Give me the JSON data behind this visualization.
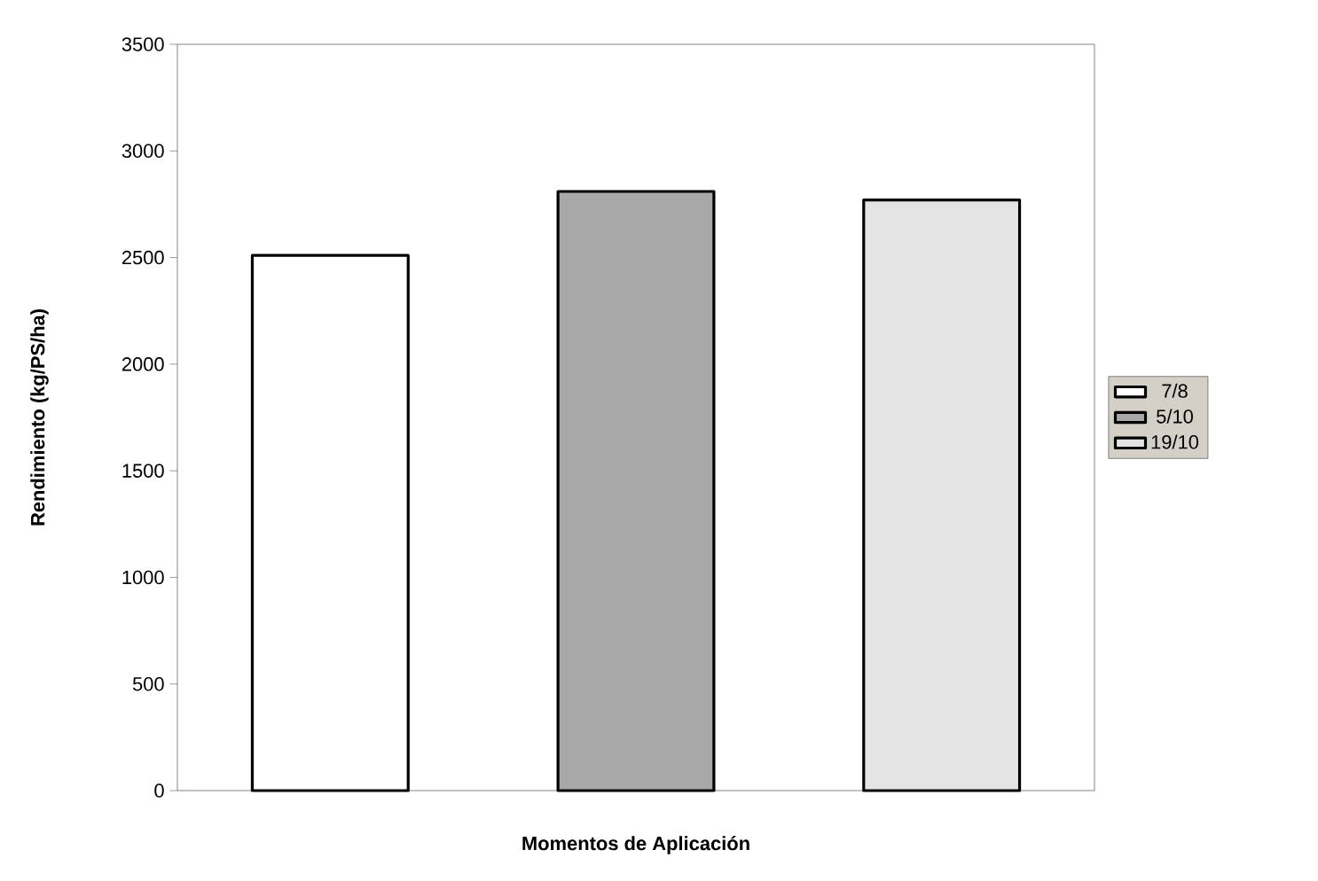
{
  "chart_data": {
    "type": "bar",
    "xlabel": "Momentos de Aplicación",
    "ylabel": "Rendimiento (kg/PS/ha)",
    "categories": [
      null,
      null,
      null
    ],
    "stacked": true,
    "series": [
      {
        "name": "7/8",
        "color": "#ffffff",
        "values": [
          2510,
          null,
          null
        ]
      },
      {
        "name": "5/10",
        "color": "#a8a8a8",
        "values": [
          null,
          2810,
          null
        ]
      },
      {
        "name": "19/10",
        "color": "#e4e4e4",
        "values": [
          null,
          null,
          2770
        ]
      }
    ],
    "ylim": [
      0,
      3500
    ],
    "yticks": [
      0,
      500,
      1000,
      1500,
      2000,
      2500,
      3000,
      3500
    ],
    "grid": false,
    "legend": "right"
  }
}
